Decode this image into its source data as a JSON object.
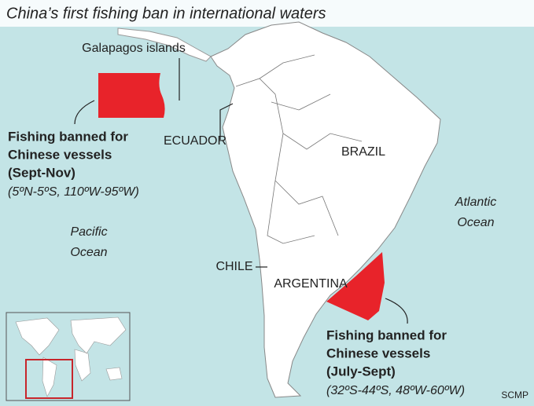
{
  "header": {
    "title": "China’s first fishing ban in international waters"
  },
  "labels": {
    "galapagos": "Galapagos islands",
    "ecuador": "ECUADOR",
    "brazil": "BRAZIL",
    "chile": "CHILE",
    "argentina": "ARGENTINA",
    "pacific": [
      "Pacific",
      "Ocean"
    ],
    "atlantic": [
      "Atlantic",
      "Ocean"
    ]
  },
  "zones": [
    {
      "title": [
        "Fishing banned for",
        "Chinese vessels",
        "(Sept-Nov)"
      ],
      "coords": "(5ºN-5ºS, 110ºW-95ºW)"
    },
    {
      "title": [
        "Fishing banned for",
        "Chinese vessels",
        "(July-Sept)"
      ],
      "coords": "(32ºS-44ºS, 48ºW-60ºW)"
    }
  ],
  "source": "SCMP"
}
